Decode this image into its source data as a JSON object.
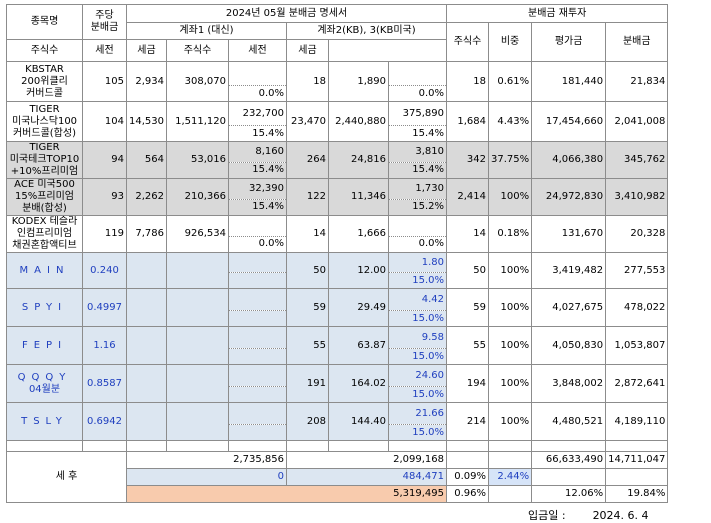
{
  "title": "2024년 05월 분배금 명세서",
  "reinvest_title": "분배금 재투자",
  "headers": {
    "name": "종목명",
    "per_share": "주당 분배금",
    "account1": "계좌1 (대신)",
    "account2": "계좌2(KB), 3(KB미국)",
    "shares": "주식수",
    "pretax": "세전",
    "tax": "세금",
    "ratio": "비중",
    "valuation": "평가금",
    "dividend": "분배금"
  },
  "rows": [
    {
      "name": "KBSTAR 200위클리 커버드콜",
      "dps": "105",
      "a1_shares": "2,934",
      "a1_pretax": "308,070",
      "a1_tax": "",
      "a1_rate": "0.0%",
      "a2_shares": "18",
      "a2_pretax": "1,890",
      "a2_tax": "",
      "a2_rate": "0.0%",
      "shares": "18",
      "ratio": "0.61%",
      "valuation": "181,440",
      "dividend": "21,834",
      "gray": false,
      "blue": false
    },
    {
      "name": "TIGER 미국나스닥100 커버드콜(합성)",
      "dps": "104",
      "a1_shares": "14,530",
      "a1_pretax": "1,511,120",
      "a1_tax": "232,700",
      "a1_rate": "15.4%",
      "a2_shares": "23,470",
      "a2_pretax": "2,440,880",
      "a2_tax": "375,890",
      "a2_rate": "15.4%",
      "shares": "1,684",
      "ratio": "4.43%",
      "valuation": "17,454,660",
      "dividend": "2,041,008",
      "gray": false,
      "blue": false
    },
    {
      "name": "TIGER 미국테크TOP10 +10%프리미엄",
      "dps": "94",
      "a1_shares": "564",
      "a1_pretax": "53,016",
      "a1_tax": "8,160",
      "a1_rate": "15.4%",
      "a2_shares": "264",
      "a2_pretax": "24,816",
      "a2_tax": "3,810",
      "a2_rate": "15.4%",
      "shares": "342",
      "ratio": "37.75%",
      "valuation": "4,066,380",
      "dividend": "345,762",
      "gray": true,
      "blue": false
    },
    {
      "name": "ACE 미국500 15%프리미엄 분배(합성)",
      "dps": "93",
      "a1_shares": "2,262",
      "a1_pretax": "210,366",
      "a1_tax": "32,390",
      "a1_rate": "15.4%",
      "a2_shares": "122",
      "a2_pretax": "11,346",
      "a2_tax": "1,730",
      "a2_rate": "15.2%",
      "shares": "2,414",
      "ratio": "100%",
      "valuation": "24,972,830",
      "dividend": "3,410,982",
      "gray": true,
      "blue": false
    },
    {
      "name": "KODEX 테슬라 인컴프리미엄 채권혼합액티브",
      "dps": "119",
      "a1_shares": "7,786",
      "a1_pretax": "926,534",
      "a1_tax": "",
      "a1_rate": "0.0%",
      "a2_shares": "14",
      "a2_pretax": "1,666",
      "a2_tax": "",
      "a2_rate": "0.0%",
      "shares": "14",
      "ratio": "0.18%",
      "valuation": "131,670",
      "dividend": "20,328",
      "gray": false,
      "blue": false
    },
    {
      "name": "MAIN",
      "dps": "0.240",
      "a1_shares": "",
      "a1_pretax": "",
      "a1_tax": "",
      "a1_rate": "",
      "a2_shares": "50",
      "a2_pretax": "12.00",
      "a2_tax": "1.80",
      "a2_rate": "15.0%",
      "shares": "50",
      "ratio": "100%",
      "valuation": "3,419,482",
      "dividend": "277,553",
      "gray": false,
      "blue": true
    },
    {
      "name": "SPYI",
      "dps": "0.4997",
      "a1_shares": "",
      "a1_pretax": "",
      "a1_tax": "",
      "a1_rate": "",
      "a2_shares": "59",
      "a2_pretax": "29.49",
      "a2_tax": "4.42",
      "a2_rate": "15.0%",
      "shares": "59",
      "ratio": "100%",
      "valuation": "4,027,675",
      "dividend": "478,022",
      "gray": false,
      "blue": true
    },
    {
      "name": "FEPI",
      "dps": "1.16",
      "a1_shares": "",
      "a1_pretax": "",
      "a1_tax": "",
      "a1_rate": "",
      "a2_shares": "55",
      "a2_pretax": "63.87",
      "a2_tax": "9.58",
      "a2_rate": "15.0%",
      "shares": "55",
      "ratio": "100%",
      "valuation": "4,050,830",
      "dividend": "1,053,807",
      "gray": false,
      "blue": true
    },
    {
      "name": "QQQY",
      "sub": "04월분",
      "dps": "0.8587",
      "a1_shares": "",
      "a1_pretax": "",
      "a1_tax": "",
      "a1_rate": "",
      "a2_shares": "191",
      "a2_pretax": "164.02",
      "a2_tax": "24.60",
      "a2_rate": "15.0%",
      "shares": "194",
      "ratio": "100%",
      "valuation": "3,848,002",
      "dividend": "2,872,641",
      "gray": false,
      "blue": true
    },
    {
      "name": "TSLY",
      "dps": "0.6942",
      "a1_shares": "",
      "a1_pretax": "",
      "a1_tax": "",
      "a1_rate": "",
      "a2_shares": "208",
      "a2_pretax": "144.40",
      "a2_tax": "21.66",
      "a2_rate": "15.0%",
      "shares": "214",
      "ratio": "100%",
      "valuation": "4,480,521",
      "dividend": "4,189,110",
      "gray": false,
      "blue": true
    }
  ],
  "summary": {
    "label": "세 후",
    "a1_total": "2,735,856",
    "a2_total": "2,099,168",
    "usd_a1": "0",
    "usd_a2": "484,471",
    "usd_pct": "0.09%",
    "usd_ratio": "2.44%",
    "grand_total": "5,319,495",
    "grand_pct": "0.96%",
    "valuation_total": "66,633,490",
    "dividend_total": "14,711,047",
    "valuation_pct": "12.06%",
    "dividend_pct": "19.84%"
  },
  "footer": {
    "label": "입금일 :",
    "date": "2024. 6. 4"
  },
  "colors": {
    "gray": "#d9d9d9",
    "blue": "#dce6f1",
    "blue_text": "#1f3fbf",
    "orange": "#f8cbad"
  }
}
